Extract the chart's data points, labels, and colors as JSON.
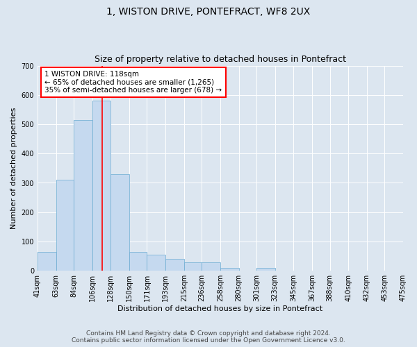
{
  "title": "1, WISTON DRIVE, PONTEFRACT, WF8 2UX",
  "subtitle": "Size of property relative to detached houses in Pontefract",
  "xlabel": "Distribution of detached houses by size in Pontefract",
  "ylabel": "Number of detached properties",
  "footer_line1": "Contains HM Land Registry data © Crown copyright and database right 2024.",
  "footer_line2": "Contains public sector information licensed under the Open Government Licence v3.0.",
  "annotation_line1": "1 WISTON DRIVE: 118sqm",
  "annotation_line2": "← 65% of detached houses are smaller (1,265)",
  "annotation_line3": "35% of semi-detached houses are larger (678) →",
  "bar_color": "#c5d9ef",
  "bar_edge_color": "#6aabd2",
  "vline_color": "red",
  "vline_x": 118,
  "fig_bg_color": "#dce6f0",
  "plot_bg_color": "#dce6f0",
  "bins": [
    41,
    63,
    84,
    106,
    128,
    150,
    171,
    193,
    215,
    236,
    258,
    280,
    301,
    323,
    345,
    367,
    388,
    410,
    432,
    453,
    475
  ],
  "bar_heights": [
    65,
    310,
    515,
    580,
    330,
    65,
    55,
    40,
    30,
    30,
    10,
    0,
    10,
    0,
    0,
    0,
    0,
    0,
    0,
    0
  ],
  "tick_labels": [
    "41sqm",
    "63sqm",
    "84sqm",
    "106sqm",
    "128sqm",
    "150sqm",
    "171sqm",
    "193sqm",
    "215sqm",
    "236sqm",
    "258sqm",
    "280sqm",
    "301sqm",
    "323sqm",
    "345sqm",
    "367sqm",
    "388sqm",
    "410sqm",
    "432sqm",
    "453sqm",
    "475sqm"
  ],
  "ylim": [
    0,
    700
  ],
  "yticks": [
    0,
    100,
    200,
    300,
    400,
    500,
    600,
    700
  ],
  "annotation_box_facecolor": "white",
  "annotation_box_edgecolor": "red",
  "title_fontsize": 10,
  "subtitle_fontsize": 9,
  "axis_label_fontsize": 8,
  "tick_fontsize": 7,
  "footer_fontsize": 6.5,
  "annotation_fontsize": 7.5,
  "ylabel_fontsize": 8
}
